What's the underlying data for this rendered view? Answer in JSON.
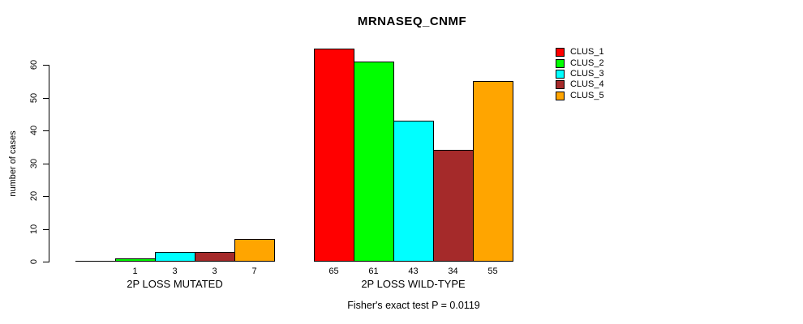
{
  "title": "MRNASEQ_CNMF",
  "footer": "Fisher's exact test P = 0.0119",
  "chart_data": {
    "type": "bar",
    "title": "MRNASEQ_CNMF",
    "xlabel": "",
    "ylabel": "number of cases",
    "ylim": [
      0,
      65
    ],
    "yticks": [
      0,
      10,
      20,
      30,
      40,
      50,
      60
    ],
    "grid": false,
    "legend_position": "right",
    "series": [
      {
        "name": "CLUS_1",
        "color": "#ff0000",
        "values": [
          0,
          65
        ]
      },
      {
        "name": "CLUS_2",
        "color": "#00ff00",
        "values": [
          1,
          61
        ]
      },
      {
        "name": "CLUS_3",
        "color": "#00ffff",
        "values": [
          3,
          43
        ]
      },
      {
        "name": "CLUS_4",
        "color": "#a52a2a",
        "values": [
          3,
          34
        ]
      },
      {
        "name": "CLUS_5",
        "color": "#ffa500",
        "values": [
          7,
          55
        ]
      }
    ],
    "groups": [
      {
        "label": "2P LOSS MUTATED",
        "values": [
          0,
          1,
          3,
          3,
          7
        ],
        "bar_labels": [
          "",
          "1",
          "3",
          "3",
          "7"
        ]
      },
      {
        "label": "2P LOSS WILD-TYPE",
        "values": [
          65,
          61,
          43,
          34,
          55
        ],
        "bar_labels": [
          "65",
          "61",
          "43",
          "34",
          "55"
        ]
      }
    ],
    "annotation": "Fisher's exact test P = 0.0119"
  }
}
